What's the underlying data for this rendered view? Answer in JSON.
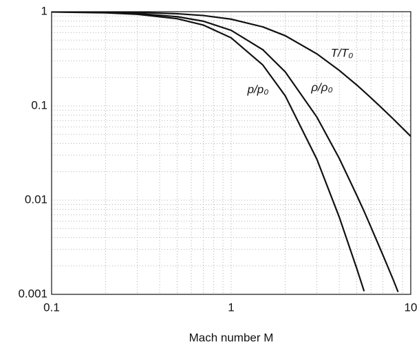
{
  "chart_data": {
    "type": "line",
    "xlabel": "Mach number M",
    "x": [
      0.1,
      0.2,
      0.3,
      0.5,
      0.7,
      1,
      1.5,
      2,
      3,
      4,
      5,
      5.5,
      6,
      7,
      8,
      8.5,
      9,
      10
    ],
    "series": [
      {
        "name": "T/T₀",
        "color": "#111111",
        "values": [
          0.998,
          0.992,
          0.982,
          0.952,
          0.911,
          0.833,
          0.69,
          0.556,
          0.357,
          0.238,
          0.167,
          0.142,
          0.122,
          0.0926,
          0.0725,
          0.0647,
          0.0581,
          0.0476
        ]
      },
      {
        "name": "ρ/ρ₀",
        "color": "#111111",
        "values": [
          0.995,
          0.98,
          0.956,
          0.885,
          0.792,
          0.634,
          0.395,
          0.23,
          0.0762,
          0.0277,
          0.0113,
          0.0076,
          0.00519,
          0.00261,
          0.00142,
          0.00106,
          null,
          null
        ]
      },
      {
        "name": "p/p₀",
        "color": "#111111",
        "values": [
          0.993,
          0.972,
          0.939,
          0.843,
          0.721,
          0.528,
          0.272,
          0.128,
          0.0272,
          0.00659,
          0.00189,
          0.00108,
          null,
          null,
          null,
          null,
          null,
          null
        ]
      }
    ],
    "xscale": "log",
    "yscale": "log",
    "xlim": [
      0.1,
      10
    ],
    "ylim": [
      0.001,
      1
    ],
    "xticks": [
      0.1,
      1,
      10
    ],
    "yticks": [
      0.001,
      0.01,
      0.1,
      1
    ],
    "xminorticks": [
      0.2,
      0.3,
      0.4,
      0.5,
      0.6,
      0.7,
      0.8,
      0.9,
      2,
      3,
      4,
      5,
      6,
      7,
      8,
      9
    ],
    "yminorticks": [
      0.002,
      0.003,
      0.004,
      0.005,
      0.006,
      0.007,
      0.008,
      0.009,
      0.02,
      0.03,
      0.04,
      0.05,
      0.06,
      0.07,
      0.08,
      0.09,
      0.2,
      0.3,
      0.4,
      0.5,
      0.6,
      0.7,
      0.8,
      0.9
    ],
    "grid": true
  }
}
